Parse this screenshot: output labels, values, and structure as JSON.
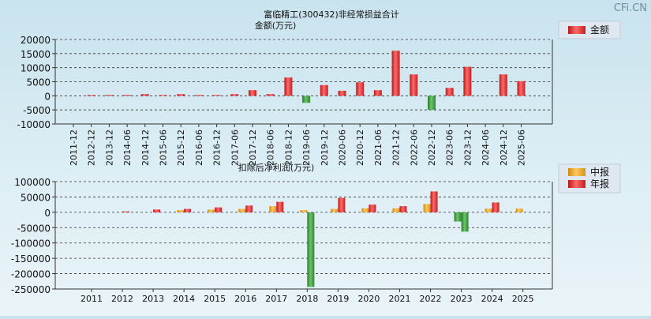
{
  "watermark": "CFi.CN",
  "charts": {
    "top": {
      "title": "富临精工(300432)非经常损益合计",
      "subtitle": "金额(万元)",
      "legend_label": "金额"
    },
    "bottom": {
      "title": "扣除后净利润(万元)",
      "legend_labels": [
        "中报",
        "年报"
      ]
    }
  },
  "colors": {
    "positive": "#e63030",
    "negative": "#3a9a3a",
    "interim": "#f5a623",
    "annual": "#e63030"
  },
  "chart_data": [
    {
      "type": "bar",
      "title": "富临精工(300432)非经常损益合计",
      "ylabel": "金额(万元)",
      "ylim": [
        -10000,
        20000
      ],
      "yticks": [
        20000,
        15000,
        10000,
        5000,
        0,
        -5000,
        -10000
      ],
      "categories": [
        "2011-12",
        "2012-12",
        "2013-12",
        "2014-06",
        "2014-12",
        "2015-06",
        "2015-12",
        "2016-06",
        "2016-12",
        "2017-06",
        "2017-12",
        "2018-06",
        "2018-12",
        "2019-06",
        "2019-12",
        "2020-06",
        "2020-12",
        "2021-06",
        "2021-12",
        "2022-06",
        "2022-12",
        "2023-06",
        "2023-12",
        "2024-06",
        "2024-12",
        "2025-06"
      ],
      "series": [
        {
          "name": "金额",
          "values": [
            0,
            300,
            300,
            300,
            600,
            300,
            600,
            300,
            300,
            600,
            2000,
            600,
            6500,
            -2500,
            3800,
            1800,
            4800,
            2000,
            16000,
            7600,
            -5000,
            2800,
            10300,
            0,
            7600,
            5200
          ]
        }
      ],
      "legend": "top-right",
      "grid": true
    },
    {
      "type": "bar",
      "title": "扣除后净利润(万元)",
      "ylim": [
        -250000,
        100000
      ],
      "yticks": [
        100000,
        50000,
        0,
        -50000,
        -100000,
        -150000,
        -200000,
        -250000
      ],
      "categories": [
        "2011",
        "2012",
        "2013",
        "2014",
        "2015",
        "2016",
        "2017",
        "2018",
        "2019",
        "2020",
        "2021",
        "2022",
        "2023",
        "2024",
        "2025"
      ],
      "series": [
        {
          "name": "中报",
          "values": [
            0,
            0,
            0,
            7000,
            9000,
            11000,
            20000,
            7000,
            11000,
            13000,
            13000,
            27000,
            -30000,
            12000,
            12000
          ]
        },
        {
          "name": "年报",
          "values": [
            0,
            3000,
            9000,
            11000,
            16000,
            22000,
            34000,
            -243000,
            47000,
            25000,
            20000,
            68000,
            -63000,
            32000,
            null
          ]
        }
      ],
      "legend": "top-right",
      "grid": true
    }
  ]
}
